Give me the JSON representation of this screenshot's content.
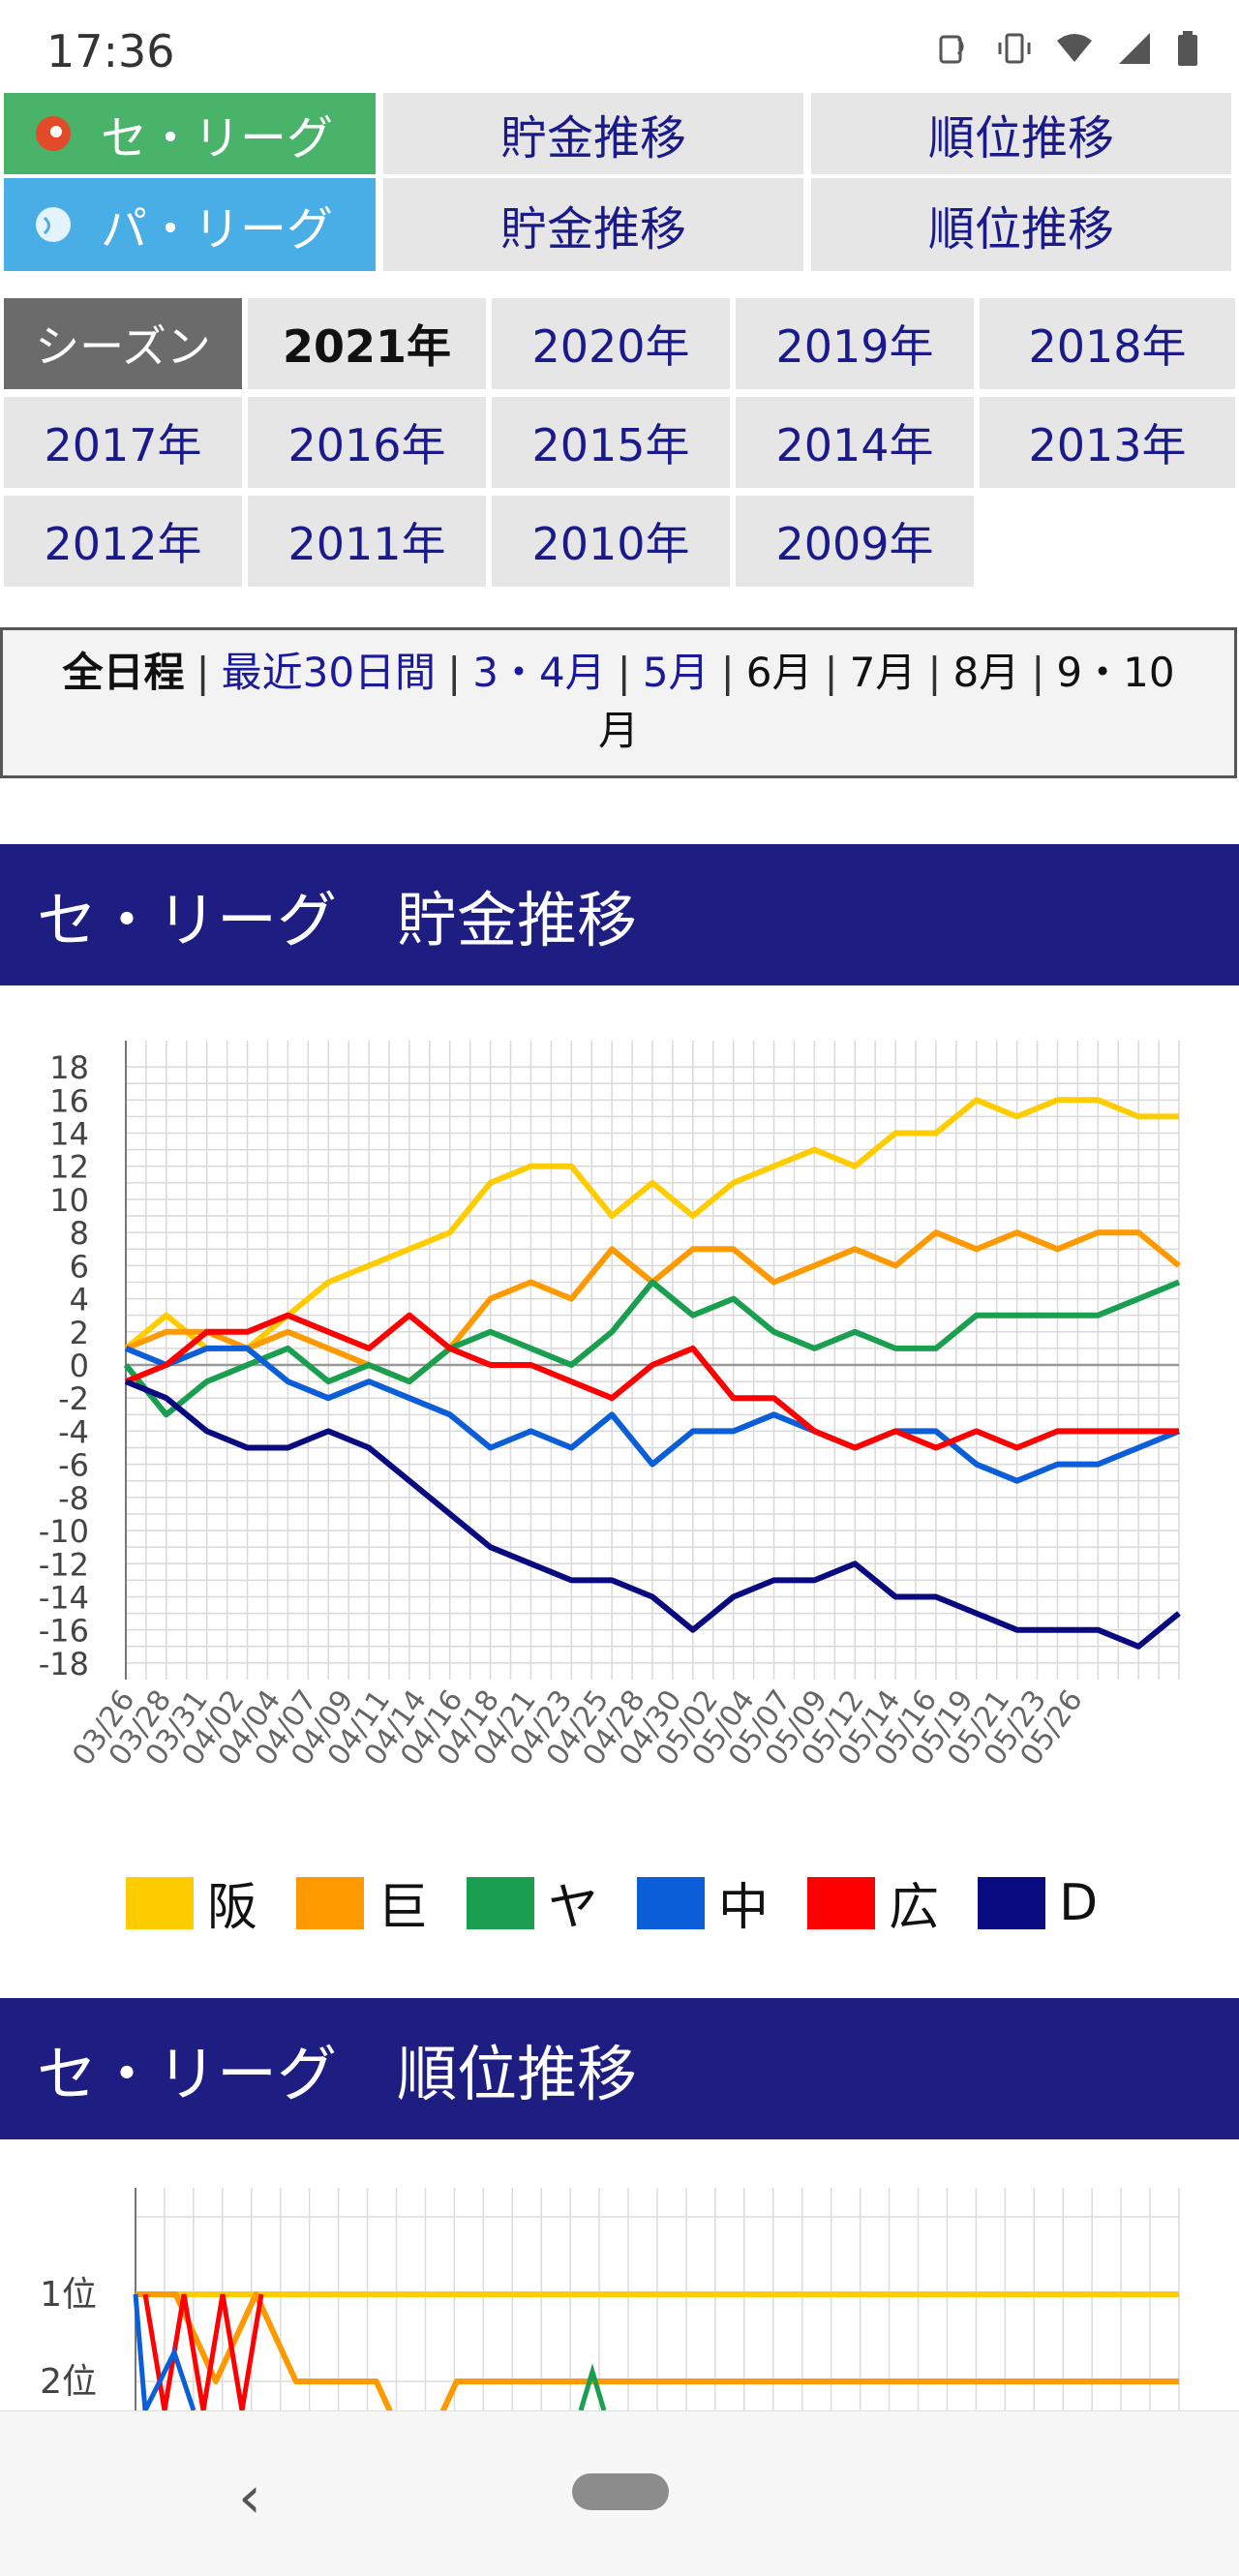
{
  "status": {
    "time": "17:36"
  },
  "leagues": [
    {
      "name": "セ・リーグ",
      "color": "#4ab36a",
      "links": [
        "貯金推移",
        "順位推移"
      ]
    },
    {
      "name": "パ・リーグ",
      "color": "#4aaee6",
      "links": [
        "貯金推移",
        "順位推移"
      ]
    }
  ],
  "seasons": {
    "label": "シーズン",
    "current": "2021年",
    "years": [
      "2020年",
      "2019年",
      "2018年",
      "2017年",
      "2016年",
      "2015年",
      "2014年",
      "2013年",
      "2012年",
      "2011年",
      "2010年",
      "2009年"
    ]
  },
  "months": {
    "all": "全日程",
    "recent": "最近30日間",
    "m34": "3・4月",
    "m5": "5月",
    "m6": "6月",
    "m7": "7月",
    "m8": "8月",
    "m9": "9・10",
    "m9b": "月",
    "sep": "|"
  },
  "sections": {
    "chokin": "セ・リーグ　貯金推移",
    "juni": "セ・リーグ　順位推移"
  },
  "chart_data": [
    {
      "type": "line",
      "title": "セ・リーグ　貯金推移",
      "x": [
        "03/26",
        "03/28",
        "03/31",
        "04/02",
        "04/04",
        "04/07",
        "04/09",
        "04/11",
        "04/14",
        "04/16",
        "04/18",
        "04/21",
        "04/23",
        "04/25",
        "04/28",
        "04/30",
        "05/02",
        "05/04",
        "05/07",
        "05/09",
        "05/12",
        "05/14",
        "05/16",
        "05/19",
        "05/21",
        "05/23",
        "05/26"
      ],
      "yticks": [
        18,
        16,
        14,
        12,
        10,
        8,
        6,
        4,
        2,
        0,
        -2,
        -4,
        -6,
        -8,
        -10,
        -12,
        -14,
        -16,
        -18
      ],
      "ylim": [
        -19,
        19
      ],
      "grid": true,
      "legend_position": "bottom",
      "series": [
        {
          "name": "阪",
          "color": "#ffcc00",
          "values": [
            1,
            3,
            1,
            1,
            3,
            5,
            6,
            7,
            8,
            11,
            12,
            12,
            9,
            11,
            9,
            11,
            12,
            13,
            12,
            14,
            14,
            16,
            15,
            16,
            16,
            15,
            15
          ]
        },
        {
          "name": "巨",
          "color": "#ff9900",
          "values": [
            1,
            2,
            2,
            1,
            2,
            1,
            0,
            -1,
            1,
            4,
            5,
            4,
            7,
            5,
            7,
            7,
            5,
            6,
            7,
            6,
            8,
            7,
            8,
            7,
            8,
            8,
            6
          ]
        },
        {
          "name": "ヤ",
          "color": "#1a9e50",
          "values": [
            0,
            -3,
            -1,
            0,
            1,
            -1,
            0,
            -1,
            1,
            2,
            1,
            0,
            2,
            5,
            3,
            4,
            2,
            1,
            2,
            1,
            1,
            3,
            3,
            3,
            3,
            4,
            5
          ]
        },
        {
          "name": "中",
          "color": "#0b5ed7",
          "values": [
            1,
            0,
            1,
            1,
            -1,
            -2,
            -1,
            -2,
            -3,
            -5,
            -4,
            -5,
            -3,
            -6,
            -4,
            -4,
            -3,
            -4,
            -5,
            -4,
            -4,
            -6,
            -7,
            -6,
            -6,
            -5,
            -4
          ]
        },
        {
          "name": "広",
          "color": "#ff0000",
          "values": [
            -1,
            0,
            2,
            2,
            3,
            2,
            1,
            3,
            1,
            0,
            0,
            -1,
            -2,
            0,
            1,
            -2,
            -2,
            -4,
            -5,
            -4,
            -5,
            -4,
            -5,
            -4,
            -4,
            -4,
            -4
          ]
        },
        {
          "name": "D",
          "color": "#0a0a80",
          "values": [
            -1,
            -2,
            -4,
            -5,
            -5,
            -4,
            -5,
            -7,
            -9,
            -11,
            -12,
            -13,
            -13,
            -14,
            -16,
            -14,
            -13,
            -13,
            -12,
            -14,
            -14,
            -15,
            -16,
            -16,
            -16,
            -17,
            -15
          ]
        }
      ]
    },
    {
      "type": "line",
      "title": "セ・リーグ　順位推移",
      "yticks": [
        "1位",
        "2位"
      ],
      "series": [
        {
          "name": "阪",
          "color": "#ffcc00",
          "values": [
            1,
            1,
            1,
            1,
            1,
            1,
            1,
            1,
            1,
            1,
            1,
            1,
            1,
            1,
            1,
            1,
            1,
            1,
            1,
            1,
            1,
            1,
            1,
            1,
            1,
            1,
            1
          ]
        },
        {
          "name": "巨",
          "color": "#ff9900",
          "values": [
            1,
            1,
            2,
            1,
            2,
            2,
            2,
            3,
            2,
            2,
            2,
            2,
            2,
            2,
            2,
            2,
            2,
            2,
            2,
            2,
            2,
            2,
            2,
            2,
            2,
            2,
            2
          ]
        }
      ]
    }
  ]
}
